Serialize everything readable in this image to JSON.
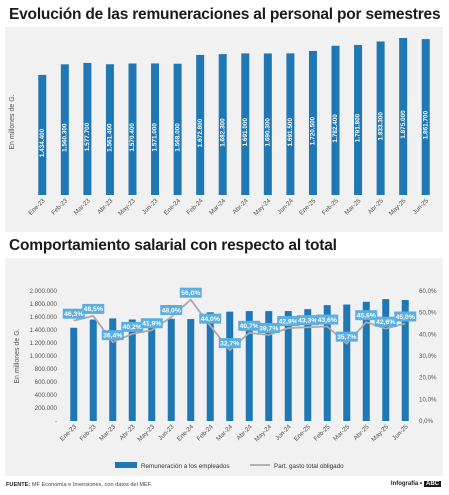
{
  "chart_data": [
    {
      "type": "bar",
      "title": "Evolución de las remuneraciones al personal por semestres",
      "ylabel": "En millones de G.",
      "categories": [
        "Ene-23",
        "Feb-23",
        "Mar-23",
        "Abr-23",
        "May-23",
        "Jun-23",
        "Ene-24",
        "Feb-24",
        "Mar-24",
        "Abr-24",
        "May-24",
        "Jun-24",
        "Ene-25",
        "Feb-25",
        "Mar-25",
        "Abr-25",
        "May-25",
        "Jun-25"
      ],
      "values": [
        1434400,
        1560300,
        1577700,
        1561400,
        1570400,
        1571000,
        1568000,
        1672800,
        1682300,
        1691000,
        1690300,
        1691500,
        1720500,
        1782400,
        1791800,
        1833300,
        1875000,
        1861700
      ],
      "value_labels": [
        "1.434.400",
        "1.560.300",
        "1.577.700",
        "1.561.400",
        "1.570.400",
        "1.571.000",
        "1.568.000",
        "1.672.800",
        "1.682.300",
        "1.691.000",
        "1.690.300",
        "1.691.500",
        "1.720.500",
        "1.782.400",
        "1.791.800",
        "1.833.300",
        "1.875.000",
        "1.861.700"
      ],
      "color": "#1f77b4"
    },
    {
      "type": "bar+line",
      "title": "Comportamiento salarial con respecto al total",
      "ylabel": "En millones de G.",
      "categories": [
        "Ene-23",
        "Feb-23",
        "Mar-23",
        "Abr-23",
        "May-23",
        "Jun-23",
        "Ene-24",
        "Feb-24",
        "Mar-24",
        "Abr-24",
        "May-24",
        "Jun-24",
        "Ene-25",
        "Feb-25",
        "Mar-25",
        "Abr-25",
        "May-25",
        "Jun-25"
      ],
      "ylim": [
        0,
        2000000
      ],
      "yticks": [
        "-",
        "200.000",
        "400.000",
        "600.000",
        "800.000",
        "1.000.000",
        "1.200.000",
        "1.400.000",
        "1.600.000",
        "1.800.000",
        "2.000.000"
      ],
      "y2lim": [
        0,
        60
      ],
      "y2ticks": [
        "0,0%",
        "10,0%",
        "20,0%",
        "30,0%",
        "40,0%",
        "50,0%",
        "60,0%"
      ],
      "series": [
        {
          "name": "Remuneración a los empleados",
          "type": "bar",
          "values": [
            1434400,
            1560300,
            1577700,
            1561400,
            1570400,
            1571000,
            1568000,
            1672800,
            1682300,
            1691000,
            1690300,
            1691500,
            1720500,
            1782400,
            1791800,
            1833300,
            1875000,
            1861700
          ],
          "color": "#1f77b4"
        },
        {
          "name": "Part. gasto total obligado",
          "type": "line",
          "axis": "right",
          "values": [
            46.3,
            48.5,
            36.4,
            40.2,
            41.9,
            48.0,
            56.0,
            44.0,
            32.7,
            40.7,
            39.7,
            42.9,
            43.3,
            43.6,
            35.7,
            45.6,
            42.6,
            45.0
          ],
          "labels": [
            "46,3%",
            "48,5%",
            "36,4%",
            "40,2%",
            "41,9%",
            "48,0%",
            "56,0%",
            "44,0%",
            "32,7%",
            "40,7%",
            "39,7%",
            "42,9%",
            "43,3%",
            "43,6%",
            "35,7%",
            "45,6%",
            "42,6%",
            "45,0%"
          ],
          "color": "#aaaaaa"
        }
      ],
      "legend_position": "bottom"
    }
  ],
  "footer": {
    "source_label": "FUENTE:",
    "source_text": "MF Economía e Inversiones, con datos del MEF.",
    "credit_label": "Infografía •",
    "credit_brand": "ABC"
  },
  "colors": {
    "bar": "#1f77b4",
    "label_box": "#5aaee0",
    "line": "#aaaaaa",
    "panel": "#f1f1f1"
  }
}
